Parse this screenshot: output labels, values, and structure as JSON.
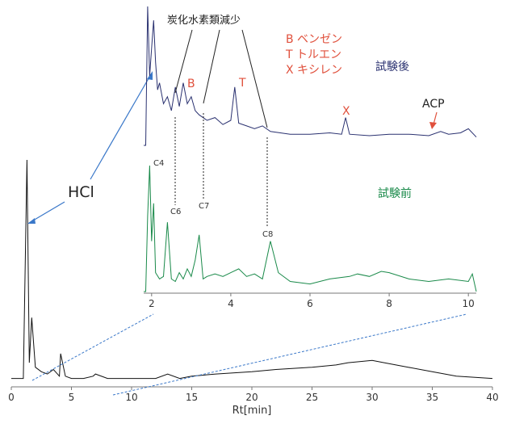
{
  "chart_data": [
    {
      "type": "line",
      "name": "main_chromatogram",
      "xlabel": "Rt[min]",
      "xlim": [
        0,
        40
      ],
      "x_ticks": [
        "0",
        "5",
        "10",
        "15",
        "20",
        "25",
        "30",
        "35",
        "40"
      ],
      "annotations": [
        "HCl"
      ],
      "series": [
        {
          "x": [
            0,
            1,
            1.3,
            1.5,
            1.7,
            2,
            2.5,
            3,
            3.5,
            4,
            4.1,
            4.5,
            5,
            6,
            6.8,
            7,
            8,
            10,
            12,
            13,
            14,
            15,
            17,
            20,
            22,
            25,
            27,
            28,
            30,
            31,
            33,
            35,
            37,
            40
          ],
          "y": [
            3,
            3,
            100,
            10,
            30,
            8,
            6,
            5,
            7,
            4,
            14,
            4,
            3,
            3,
            4,
            5,
            3,
            3,
            3,
            5,
            3,
            4,
            5,
            6,
            7,
            8,
            9,
            10,
            11,
            10,
            8,
            6,
            4,
            3
          ]
        }
      ]
    },
    {
      "type": "line",
      "name": "inset_after_test",
      "legend": "試験後",
      "xlim": [
        1.8,
        10.2
      ],
      "annotations": [
        "炭化水素類減少",
        "B",
        "T",
        "X",
        "ACP"
      ],
      "legend_notes": [
        "B ベンゼン",
        "T トルエン",
        "X キシレン"
      ],
      "series": [
        {
          "x": [
            1.8,
            1.85,
            1.9,
            1.95,
            2.0,
            2.05,
            2.1,
            2.15,
            2.2,
            2.3,
            2.4,
            2.5,
            2.6,
            2.7,
            2.8,
            2.9,
            3.0,
            3.1,
            3.2,
            3.4,
            3.6,
            3.8,
            4.0,
            4.1,
            4.2,
            4.4,
            4.6,
            4.8,
            5.0,
            5.5,
            6.0,
            6.5,
            6.8,
            6.9,
            7.0,
            7.5,
            8.0,
            8.5,
            9.0,
            9.3,
            9.5,
            9.8,
            10.0,
            10.2
          ],
          "y": [
            0,
            0,
            100,
            50,
            70,
            90,
            60,
            40,
            45,
            30,
            35,
            25,
            42,
            28,
            45,
            30,
            35,
            25,
            22,
            18,
            20,
            15,
            18,
            42,
            16,
            14,
            12,
            14,
            10,
            8,
            8,
            9,
            8,
            20,
            8,
            7,
            8,
            8,
            7,
            10,
            8,
            9,
            12,
            6
          ]
        }
      ]
    },
    {
      "type": "line",
      "name": "inset_before_test",
      "legend": "試験前",
      "xlim": [
        1.8,
        10.2
      ],
      "x_ticks": [
        "2",
        "4",
        "6",
        "8",
        "10"
      ],
      "annotations": [
        "C4",
        "C6",
        "C7",
        "C8"
      ],
      "series": [
        {
          "x": [
            1.8,
            1.85,
            1.9,
            1.95,
            2.0,
            2.05,
            2.1,
            2.2,
            2.3,
            2.4,
            2.5,
            2.6,
            2.7,
            2.8,
            2.9,
            3.0,
            3.1,
            3.2,
            3.3,
            3.4,
            3.6,
            3.8,
            4.0,
            4.2,
            4.4,
            4.6,
            4.8,
            5.0,
            5.2,
            5.5,
            6.0,
            6.5,
            7.0,
            7.2,
            7.5,
            7.8,
            8.0,
            8.5,
            9.0,
            9.5,
            10.0,
            10.1,
            10.2
          ],
          "y": [
            0,
            0,
            60,
            100,
            40,
            70,
            15,
            10,
            12,
            55,
            10,
            8,
            15,
            10,
            18,
            12,
            25,
            45,
            10,
            12,
            14,
            12,
            15,
            18,
            12,
            14,
            10,
            40,
            15,
            8,
            6,
            10,
            12,
            14,
            12,
            16,
            15,
            10,
            8,
            10,
            8,
            14,
            0
          ]
        }
      ]
    }
  ]
}
